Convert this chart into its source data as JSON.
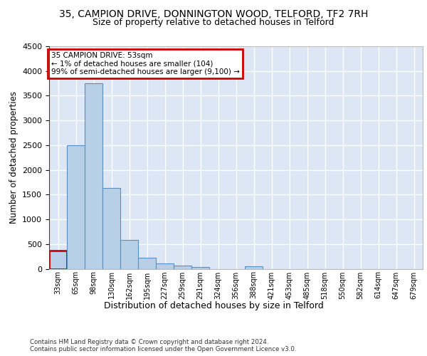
{
  "title_line1": "35, CAMPION DRIVE, DONNINGTON WOOD, TELFORD, TF2 7RH",
  "title_line2": "Size of property relative to detached houses in Telford",
  "xlabel": "Distribution of detached houses by size in Telford",
  "ylabel": "Number of detached properties",
  "footnote": "Contains HM Land Registry data © Crown copyright and database right 2024.\nContains public sector information licensed under the Open Government Licence v3.0.",
  "bin_labels": [
    "33sqm",
    "65sqm",
    "98sqm",
    "130sqm",
    "162sqm",
    "195sqm",
    "227sqm",
    "259sqm",
    "291sqm",
    "324sqm",
    "356sqm",
    "388sqm",
    "421sqm",
    "453sqm",
    "485sqm",
    "518sqm",
    "550sqm",
    "582sqm",
    "614sqm",
    "647sqm",
    "679sqm"
  ],
  "bar_values": [
    370,
    2500,
    3750,
    1640,
    590,
    230,
    105,
    60,
    35,
    0,
    0,
    55,
    0,
    0,
    0,
    0,
    0,
    0,
    0,
    0,
    0
  ],
  "bar_color": "#b8cfe8",
  "bar_edge_color": "#5a8fc0",
  "highlight_bar_index": 0,
  "highlight_color": "#cc0000",
  "annotation_line1": "35 CAMPION DRIVE: 53sqm",
  "annotation_line2": "← 1% of detached houses are smaller (104)",
  "annotation_line3": "99% of semi-detached houses are larger (9,100) →",
  "annotation_box_color": "#cc0000",
  "ylim": [
    0,
    4500
  ],
  "yticks": [
    0,
    500,
    1000,
    1500,
    2000,
    2500,
    3000,
    3500,
    4000,
    4500
  ],
  "bg_color": "#dce6f5",
  "grid_color": "#ffffff",
  "title1_fontsize": 10,
  "title2_fontsize": 9
}
